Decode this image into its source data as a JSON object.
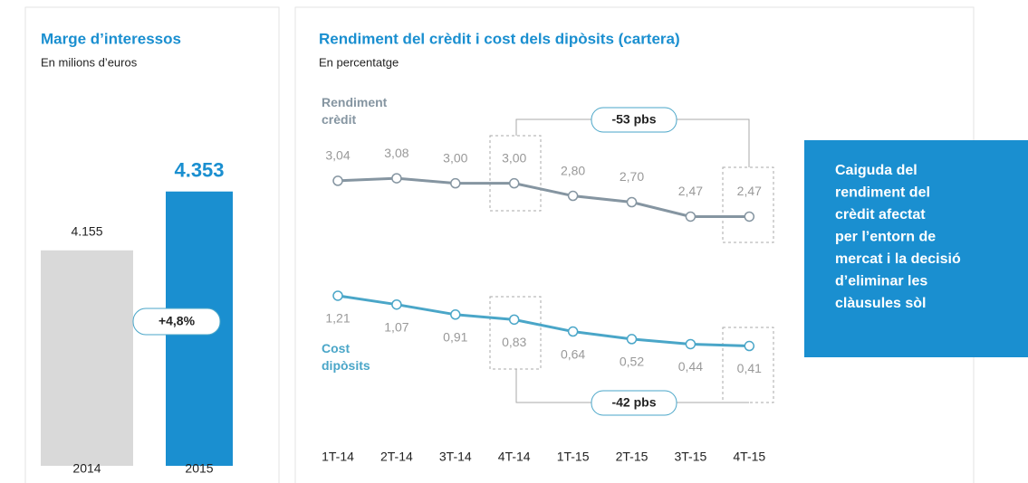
{
  "chart_data": [
    {
      "type": "bar",
      "title": "Marge d’interessos",
      "subtitle": "En milions d’euros",
      "categories": [
        "2014",
        "2015"
      ],
      "values": [
        4155,
        4353
      ],
      "value_labels": [
        "4.155",
        "4.353"
      ],
      "colors": [
        "#d9d9d9",
        "#1a8fd0"
      ],
      "annotations": [
        "+4,8%"
      ],
      "ylim": [
        3430,
        4480
      ]
    },
    {
      "type": "line",
      "title": "Rendiment del crèdit i cost dels dipòsits (cartera)",
      "subtitle": "En percentatge",
      "categories": [
        "1T-14",
        "2T-14",
        "3T-14",
        "4T-14",
        "1T-15",
        "2T-15",
        "3T-15",
        "4T-15"
      ],
      "series": [
        {
          "name": "Rendiment crèdit",
          "color": "#8595a1",
          "values": [
            3.04,
            3.08,
            3.0,
            3.0,
            2.8,
            2.7,
            2.47,
            2.47
          ],
          "value_labels": [
            "3,04",
            "3,08",
            "3,00",
            "3,00",
            "2,80",
            "2,70",
            "2,47",
            "2,47"
          ]
        },
        {
          "name": "Cost dipòsits",
          "color": "#4aa6c8",
          "values": [
            1.21,
            1.07,
            0.91,
            0.83,
            0.64,
            0.52,
            0.44,
            0.41
          ],
          "value_labels": [
            "1,21",
            "1,07",
            "0,91",
            "0,83",
            "0,64",
            "0,52",
            "0,44",
            "0,41"
          ]
        }
      ],
      "annotations": [
        "-53 pbs",
        "-42 pbs"
      ],
      "ylim": [
        0,
        3.6
      ]
    }
  ],
  "callout": {
    "lines": [
      "Caiguda del",
      "rendiment del",
      "crèdit afectat",
      "per l’entorn de",
      "mercat i la decisió",
      "d’eliminar les",
      "clàusules sòl"
    ]
  }
}
